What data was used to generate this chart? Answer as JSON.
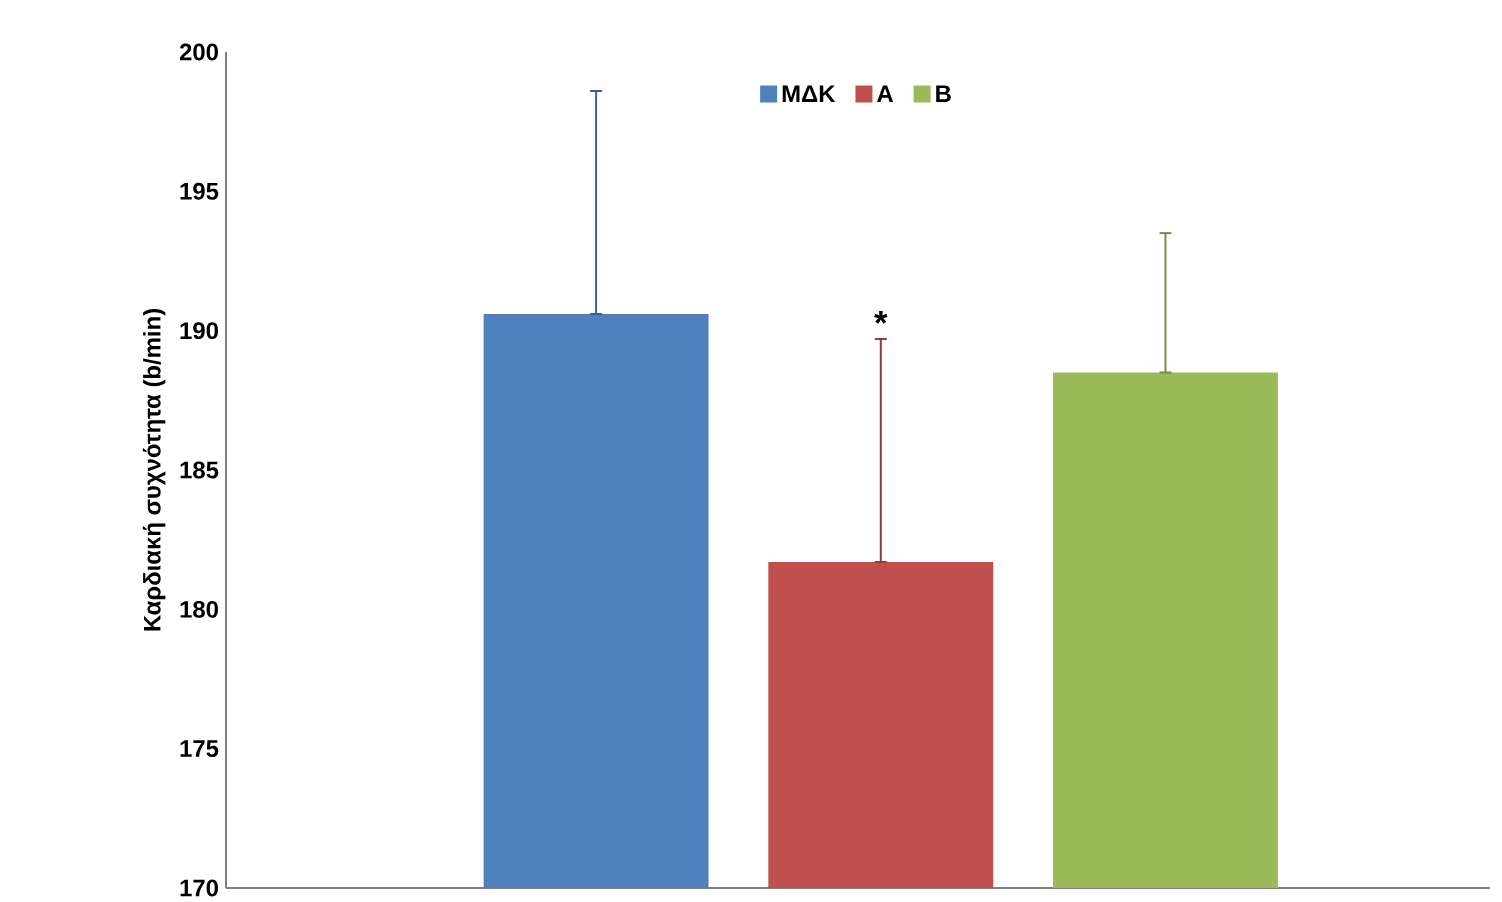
{
  "chart_data": {
    "type": "bar",
    "ylabel": "Καρδιακή συχνότητα (b/min)",
    "categories": [
      null,
      null,
      null
    ],
    "series": [
      {
        "name": "ΜΔΚ",
        "color": "#4f81bd",
        "values": [
          190.6,
          null,
          null
        ],
        "errors": [
          [
            190.6,
            198.6
          ],
          null,
          null
        ]
      },
      {
        "name": "Α",
        "color": "#c0504d",
        "values": [
          null,
          181.7,
          null
        ],
        "errors": [
          null,
          [
            181.7,
            189.7
          ],
          null
        ]
      },
      {
        "name": "Β",
        "color": "#9bbb59",
        "values": [
          null,
          null,
          188.5
        ],
        "errors": [
          null,
          null,
          [
            188.5,
            193.5
          ]
        ]
      }
    ],
    "ylim": [
      170,
      200
    ],
    "yticks": [
      170,
      175,
      180,
      185,
      190,
      195,
      200
    ],
    "annotations": [
      "*"
    ],
    "legend": "top",
    "tick_labels": "y",
    "grid": false
  }
}
